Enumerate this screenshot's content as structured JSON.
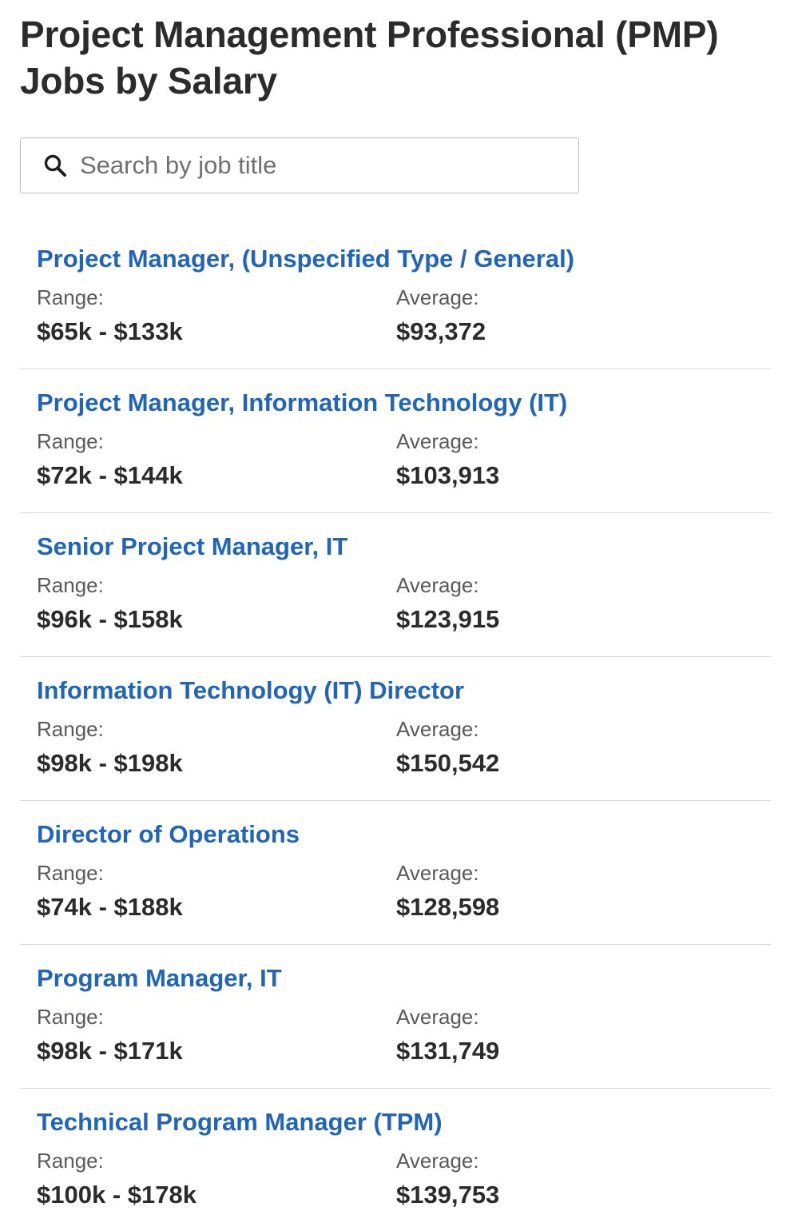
{
  "page": {
    "title": "Project Management Professional (PMP) Jobs by Salary"
  },
  "search": {
    "placeholder": "Search by job title",
    "value": "",
    "icon": "search-icon"
  },
  "labels": {
    "range": "Range:",
    "average": "Average:"
  },
  "jobs": [
    {
      "title": "Project Manager, (Unspecified Type / General)",
      "range": "$65k - $133k",
      "average": "$93,372"
    },
    {
      "title": "Project Manager, Information Technology (IT)",
      "range": "$72k - $144k",
      "average": "$103,913"
    },
    {
      "title": "Senior Project Manager, IT",
      "range": "$96k - $158k",
      "average": "$123,915"
    },
    {
      "title": "Information Technology (IT) Director",
      "range": "$98k - $198k",
      "average": "$150,542"
    },
    {
      "title": "Director of Operations",
      "range": "$74k - $188k",
      "average": "$128,598"
    },
    {
      "title": "Program Manager, IT",
      "range": "$98k - $171k",
      "average": "$131,749"
    },
    {
      "title": "Technical Program Manager (TPM)",
      "range": "$100k - $178k",
      "average": "$139,753"
    }
  ],
  "colors": {
    "link": "#2165b8",
    "text": "#2b2b2b",
    "label": "#5a5a5a",
    "divider": "#d9d9d9"
  }
}
